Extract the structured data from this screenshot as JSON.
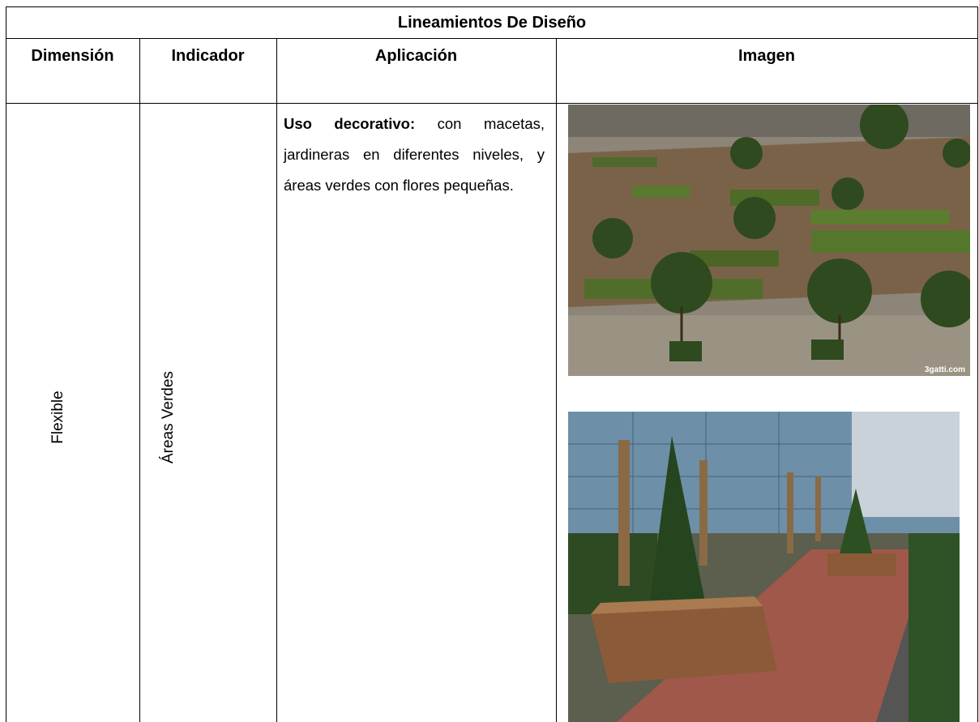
{
  "table": {
    "title": "Lineamientos De Diseño",
    "headers": [
      "Dimensión",
      "Indicador",
      "Aplicación",
      "Imagen"
    ],
    "rows": [
      {
        "dimension": "Flexible",
        "indicator": "Áreas Verdes",
        "application": {
          "bold": "Uso decorativo:",
          "text": "con macetas, jardineras en diferentes niveles, y áreas verdes con flores pequeñas."
        },
        "image_watermark": "3gatti.com"
      }
    ]
  }
}
